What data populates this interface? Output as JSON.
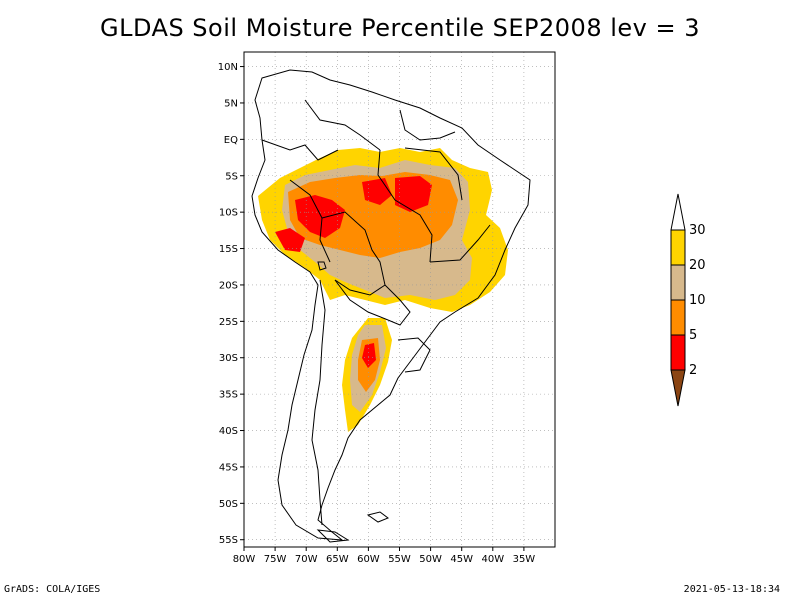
{
  "title": "GLDAS Soil Moisture Percentile SEP2008 lev = 3",
  "footer": {
    "left": "GrADS: COLA/IGES",
    "right": "2021-05-13-18:34"
  },
  "map": {
    "lon_range": [
      -80,
      -30
    ],
    "lat_range": [
      -56,
      12
    ],
    "lon_ticks": [
      {
        "value": -80,
        "label": "80W"
      },
      {
        "value": -75,
        "label": "75W"
      },
      {
        "value": -70,
        "label": "70W"
      },
      {
        "value": -65,
        "label": "65W"
      },
      {
        "value": -60,
        "label": "60W"
      },
      {
        "value": -55,
        "label": "55W"
      },
      {
        "value": -50,
        "label": "50W"
      },
      {
        "value": -45,
        "label": "45W"
      },
      {
        "value": -40,
        "label": "40W"
      },
      {
        "value": -35,
        "label": "35W"
      }
    ],
    "lat_ticks": [
      {
        "value": 10,
        "label": "10N"
      },
      {
        "value": 5,
        "label": "5N"
      },
      {
        "value": 0,
        "label": "EQ"
      },
      {
        "value": -5,
        "label": "5S"
      },
      {
        "value": -10,
        "label": "10S"
      },
      {
        "value": -15,
        "label": "15S"
      },
      {
        "value": -20,
        "label": "20S"
      },
      {
        "value": -25,
        "label": "25S"
      },
      {
        "value": -30,
        "label": "30S"
      },
      {
        "value": -35,
        "label": "35S"
      },
      {
        "value": -40,
        "label": "40S"
      },
      {
        "value": -45,
        "label": "45S"
      },
      {
        "value": -50,
        "label": "50S"
      },
      {
        "value": -55,
        "label": "55S"
      }
    ],
    "grid": true
  },
  "colorbar": {
    "levels": [
      {
        "label": "30",
        "color": "#ffffff"
      },
      {
        "label": "20",
        "color": "#ffd400"
      },
      {
        "label": "10",
        "color": "#d7b98c"
      },
      {
        "label": "5",
        "color": "#ff8c00"
      },
      {
        "label": "2",
        "color": "#ff0000"
      }
    ],
    "bottom_color": "#8b4513"
  },
  "colors": {
    "gt30": "#ffffff",
    "p20_30": "#ffd400",
    "p10_20": "#d7b98c",
    "p5_10": "#ff8c00",
    "p2_5": "#ff0000",
    "lt2": "#8b4513"
  }
}
